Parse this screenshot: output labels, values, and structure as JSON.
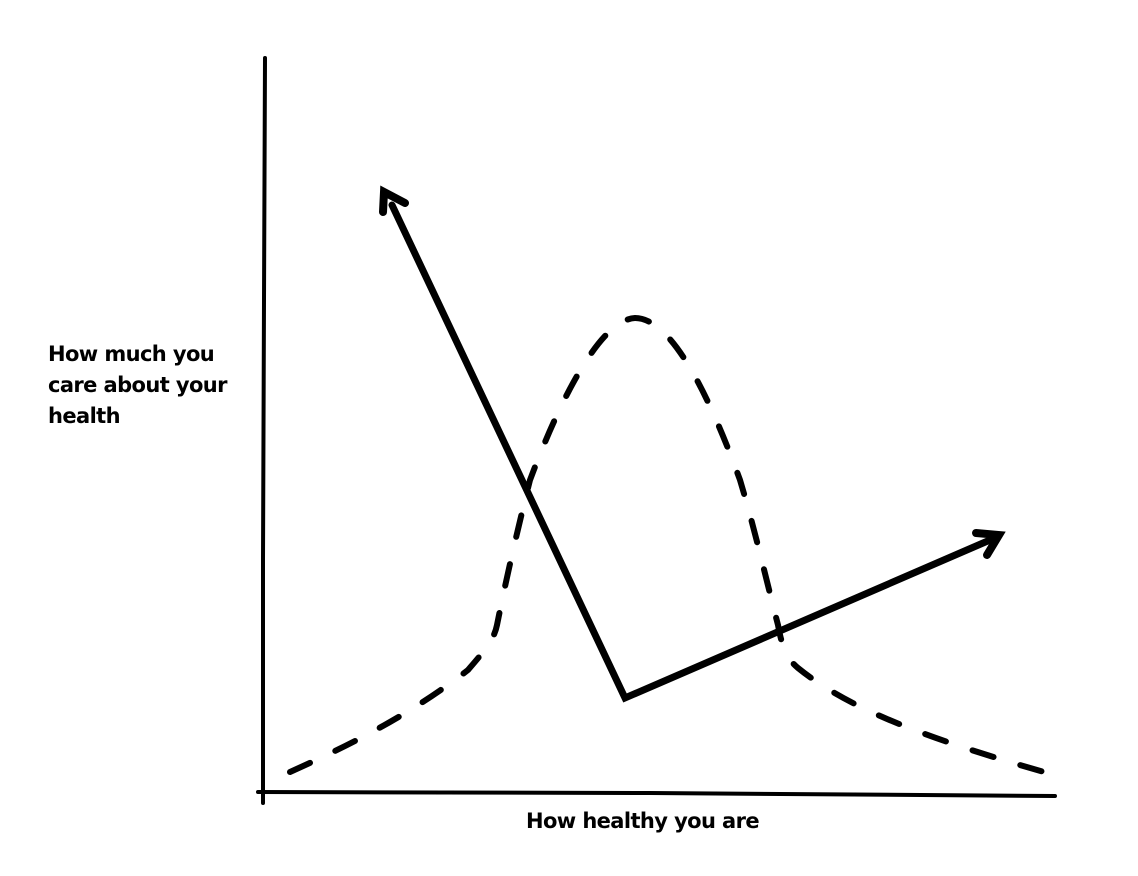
{
  "diagram": {
    "y_axis_label_lines": [
      "How much you",
      "care about your",
      "health"
    ],
    "x_axis_label": "How healthy you are",
    "ink_color": "#000000",
    "background_color": "#ffffff",
    "curve_style": "dashed",
    "arrow_style": "solid"
  }
}
